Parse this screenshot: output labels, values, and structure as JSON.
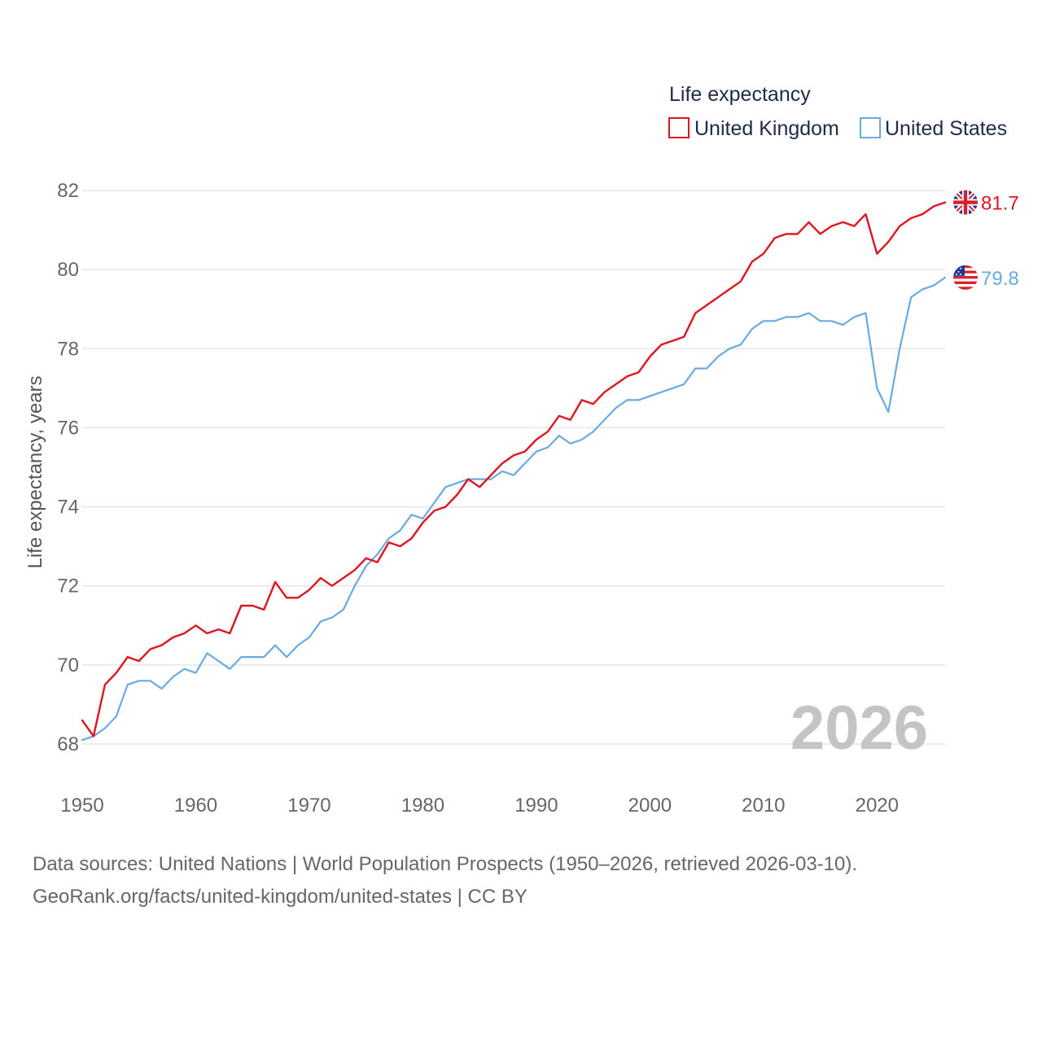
{
  "chart_data": {
    "type": "line",
    "legend_title": "Life expectancy",
    "ylabel": "Life expectancy, years",
    "xlabel": "",
    "ylim": [
      67.5,
      82.6
    ],
    "xlim": [
      1950,
      2026
    ],
    "y_ticks": [
      68,
      70,
      72,
      74,
      76,
      78,
      80,
      82
    ],
    "x_ticks": [
      1950,
      1960,
      1970,
      1980,
      1990,
      2000,
      2010,
      2020
    ],
    "y_tick_labels": [
      "68",
      "70",
      "72",
      "74",
      "76",
      "78",
      "80",
      "82"
    ],
    "x_tick_labels": [
      "1950",
      "1960",
      "1970",
      "1980",
      "1990",
      "2000",
      "2010",
      "2020"
    ],
    "year_label": "2026",
    "legend_placement": "top-right",
    "grid": true,
    "x": [
      1950,
      1951,
      1952,
      1953,
      1954,
      1955,
      1956,
      1957,
      1958,
      1959,
      1960,
      1961,
      1962,
      1963,
      1964,
      1965,
      1966,
      1967,
      1968,
      1969,
      1970,
      1971,
      1972,
      1973,
      1974,
      1975,
      1976,
      1977,
      1978,
      1979,
      1980,
      1981,
      1982,
      1983,
      1984,
      1985,
      1986,
      1987,
      1988,
      1989,
      1990,
      1991,
      1992,
      1993,
      1994,
      1995,
      1996,
      1997,
      1998,
      1999,
      2000,
      2001,
      2002,
      2003,
      2004,
      2005,
      2006,
      2007,
      2008,
      2009,
      2010,
      2011,
      2012,
      2013,
      2014,
      2015,
      2016,
      2017,
      2018,
      2019,
      2020,
      2021,
      2022,
      2023,
      2024,
      2025,
      2026
    ],
    "series": [
      {
        "name": "United Kingdom",
        "color": "#e0141e",
        "end_label": "81.7",
        "flag_icon": "uk-flag-icon",
        "values": [
          68.6,
          68.2,
          69.5,
          69.8,
          70.2,
          70.1,
          70.4,
          70.5,
          70.7,
          70.8,
          71.0,
          70.8,
          70.9,
          70.8,
          71.5,
          71.5,
          71.4,
          72.1,
          71.7,
          71.7,
          71.9,
          72.2,
          72.0,
          72.2,
          72.4,
          72.7,
          72.6,
          73.1,
          73.0,
          73.2,
          73.6,
          73.9,
          74.0,
          74.3,
          74.7,
          74.5,
          74.8,
          75.1,
          75.3,
          75.4,
          75.7,
          75.9,
          76.3,
          76.2,
          76.7,
          76.6,
          76.9,
          77.1,
          77.3,
          77.4,
          77.8,
          78.1,
          78.2,
          78.3,
          78.9,
          79.1,
          79.3,
          79.5,
          79.7,
          80.2,
          80.4,
          80.8,
          80.9,
          80.9,
          81.2,
          80.9,
          81.1,
          81.2,
          81.1,
          81.4,
          80.4,
          80.7,
          81.1,
          81.3,
          81.4,
          81.6,
          81.7
        ]
      },
      {
        "name": "United States",
        "color": "#6aaae4",
        "end_label": "79.8",
        "flag_icon": "us-flag-icon",
        "values": [
          68.1,
          68.2,
          68.4,
          68.7,
          69.5,
          69.6,
          69.6,
          69.4,
          69.7,
          69.9,
          69.8,
          70.3,
          70.1,
          69.9,
          70.2,
          70.2,
          70.2,
          70.5,
          70.2,
          70.5,
          70.7,
          71.1,
          71.2,
          71.4,
          72.0,
          72.5,
          72.8,
          73.2,
          73.4,
          73.8,
          73.7,
          74.1,
          74.5,
          74.6,
          74.7,
          74.7,
          74.7,
          74.9,
          74.8,
          75.1,
          75.4,
          75.5,
          75.8,
          75.6,
          75.7,
          75.9,
          76.2,
          76.5,
          76.7,
          76.7,
          76.8,
          76.9,
          77.0,
          77.1,
          77.5,
          77.5,
          77.8,
          78.0,
          78.1,
          78.5,
          78.7,
          78.7,
          78.8,
          78.8,
          78.9,
          78.7,
          78.7,
          78.6,
          78.8,
          78.9,
          77.0,
          76.4,
          78.0,
          79.3,
          79.5,
          79.6,
          79.8
        ]
      }
    ]
  },
  "footer": {
    "source_line": "Data sources: United Nations | World Population Prospects (1950–2026, retrieved 2026-03-10).",
    "credit_line": "GeoRank.org/facts/united-kingdom/united-states | CC BY"
  }
}
